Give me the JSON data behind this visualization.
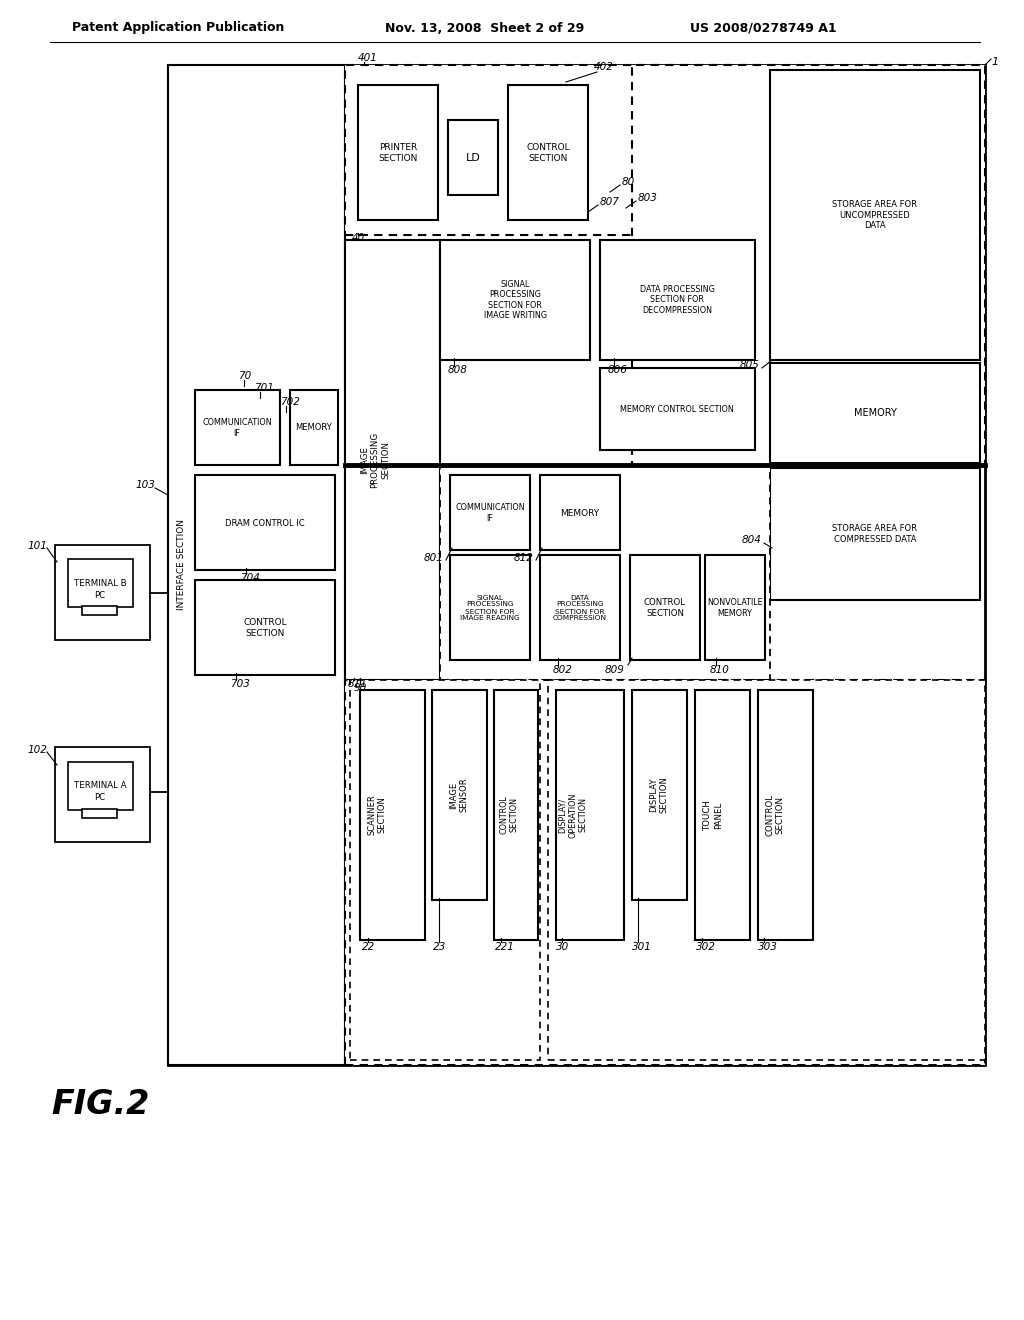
{
  "fig_width": 10.24,
  "fig_height": 13.2,
  "bg_color": "#ffffff",
  "header_left": "Patent Application Publication",
  "header_mid": "Nov. 13, 2008  Sheet 2 of 29",
  "header_right": "US 2008/0278749 A1"
}
